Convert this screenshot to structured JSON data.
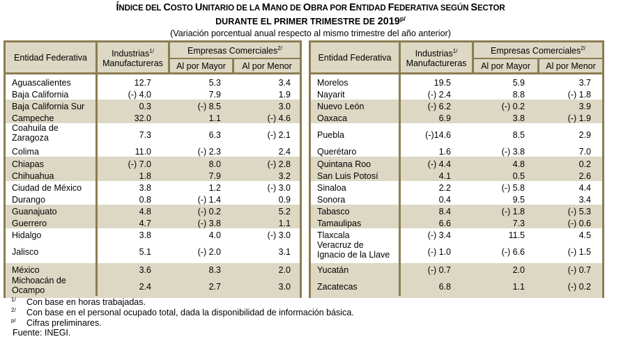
{
  "title": {
    "line1_parts": [
      {
        "t": "Í",
        "big": true
      },
      {
        "t": "NDICE DEL ",
        "big": false
      },
      {
        "t": "C",
        "big": true
      },
      {
        "t": "OSTO ",
        "big": false
      },
      {
        "t": "U",
        "big": true
      },
      {
        "t": "NITARIO DE LA ",
        "big": false
      },
      {
        "t": "M",
        "big": true
      },
      {
        "t": "ANO DE ",
        "big": false
      },
      {
        "t": "O",
        "big": true
      },
      {
        "t": "BRA POR ",
        "big": false
      },
      {
        "t": "E",
        "big": true
      },
      {
        "t": "NTIDAD ",
        "big": false
      },
      {
        "t": "F",
        "big": true
      },
      {
        "t": "EDERATIVA SEGÚN ",
        "big": false
      },
      {
        "t": "S",
        "big": true
      },
      {
        "t": "ECTOR",
        "big": false
      }
    ],
    "line2": "DURANTE EL PRIMER TRIMESTRE DE ",
    "line2_year": "2019",
    "line2_sup": "p/",
    "subtitle": "(Variación porcentual anual respecto al mismo trimestre del año anterior)"
  },
  "headers": {
    "entidad": "Entidad Federativa",
    "industrias_l1": "Industrias",
    "industrias_sup": "1/",
    "industrias_l2": "Manufactureras",
    "empresas": "Empresas Comerciales",
    "empresas_sup": "2/",
    "mayor": "Al por Mayor",
    "menor": "Al por Menor"
  },
  "left_table": [
    {
      "name": "Aguascalientes",
      "ind": "12.7",
      "mayor": "5.3",
      "menor": "3.4"
    },
    {
      "name": "Baja California",
      "ind": "(-) 4.0",
      "mayor": "7.9",
      "menor": "1.9"
    },
    {
      "name": "Baja California Sur",
      "ind": "0.3",
      "mayor": "(-) 8.5",
      "menor": "3.0"
    },
    {
      "name": "Campeche",
      "ind": "32.0",
      "mayor": "1.1",
      "menor": "(-) 4.6"
    },
    {
      "name": "Coahuila de",
      "name2": "Zaragoza",
      "ind": "7.3",
      "mayor": "6.3",
      "menor": "(-) 2.1"
    },
    {
      "name": "Colima",
      "ind": "11.0",
      "mayor": "(-) 2.3",
      "menor": "2.4"
    },
    {
      "name": "Chiapas",
      "ind": "(-) 7.0",
      "mayor": "8.0",
      "menor": "(-) 2.8"
    },
    {
      "name": "Chihuahua",
      "ind": "1.8",
      "mayor": "7.9",
      "menor": "3.2"
    },
    {
      "name": "Ciudad de México",
      "ind": "3.8",
      "mayor": "1.2",
      "menor": "(-) 3.0"
    },
    {
      "name": "Durango",
      "ind": "0.8",
      "mayor": "(-) 1.4",
      "menor": "0.9"
    },
    {
      "name": "Guanajuato",
      "ind": "4.8",
      "mayor": "(-) 0.2",
      "menor": "5.2"
    },
    {
      "name": "Guerrero",
      "ind": "4.7",
      "mayor": "(-) 3.8",
      "menor": "1.1"
    },
    {
      "name": "Hidalgo",
      "ind": "3.8",
      "mayor": "4.0",
      "menor": "(-) 3.0"
    },
    {
      "name": "Jalisco",
      "ind": "5.1",
      "mayor": "(-) 2.0",
      "menor": "3.1"
    },
    {
      "name": "México",
      "ind": "3.6",
      "mayor": "8.3",
      "menor": "2.0"
    },
    {
      "name": "Michoacán de",
      "name2": "Ocampo",
      "ind": "2.4",
      "mayor": "2.7",
      "menor": "3.0"
    }
  ],
  "right_table": [
    {
      "name": "Morelos",
      "ind": "19.5",
      "mayor": "5.9",
      "menor": "3.7"
    },
    {
      "name": "Nayarit",
      "ind": "(-) 2.4",
      "mayor": "8.8",
      "menor": "(-) 1.8"
    },
    {
      "name": "Nuevo León",
      "ind": "(-) 6.2",
      "mayor": "(-) 0.2",
      "menor": "3.9"
    },
    {
      "name": "Oaxaca",
      "ind": "6.9",
      "mayor": "3.8",
      "menor": "(-) 1.9"
    },
    {
      "name": "Puebla",
      "ind": "(-)14.6",
      "mayor": "8.5",
      "menor": "2.9"
    },
    {
      "name": "Querétaro",
      "ind": "1.6",
      "mayor": "(-) 3.8",
      "menor": "7.0"
    },
    {
      "name": "Quintana Roo",
      "ind": "(-) 4.4",
      "mayor": "4.8",
      "menor": "0.2"
    },
    {
      "name": "San Luis Potosí",
      "ind": "4.1",
      "mayor": "0.5",
      "menor": "2.6"
    },
    {
      "name": "Sinaloa",
      "ind": "2.2",
      "mayor": "(-) 5.8",
      "menor": "4.4"
    },
    {
      "name": "Sonora",
      "ind": "0.4",
      "mayor": "9.5",
      "menor": "3.4"
    },
    {
      "name": "Tabasco",
      "ind": "8.4",
      "mayor": "(-) 1.8",
      "menor": "(-) 5.3"
    },
    {
      "name": "Tamaulipas",
      "ind": "6.6",
      "mayor": "7.3",
      "menor": "(-) 0.6"
    },
    {
      "name": "Tlaxcala",
      "ind": "(-) 3.4",
      "mayor": "11.5",
      "menor": "4.5"
    },
    {
      "name": "Veracruz de",
      "name2": "Ignacio de la Llave",
      "ind": "(-) 1.0",
      "mayor": "(-) 6.6",
      "menor": "(-) 1.5"
    },
    {
      "name": "Yucatán",
      "ind": "(-) 0.7",
      "mayor": "2.0",
      "menor": "(-) 0.7"
    },
    {
      "name": "Zacatecas",
      "ind": "6.8",
      "mayor": "1.1",
      "menor": "(-) 0.2"
    }
  ],
  "footnotes": [
    {
      "mark": "1/",
      "text": "Con base en horas trabajadas."
    },
    {
      "mark": "2/",
      "text": "Con base en el personal ocupado total, dada la disponibilidad de información básica."
    },
    {
      "mark": "p/",
      "text": "Cifras preliminares."
    }
  ],
  "source": "Fuente: INEGI.",
  "colors": {
    "border": "#8b7d52",
    "shade": "#ddd8c4"
  }
}
